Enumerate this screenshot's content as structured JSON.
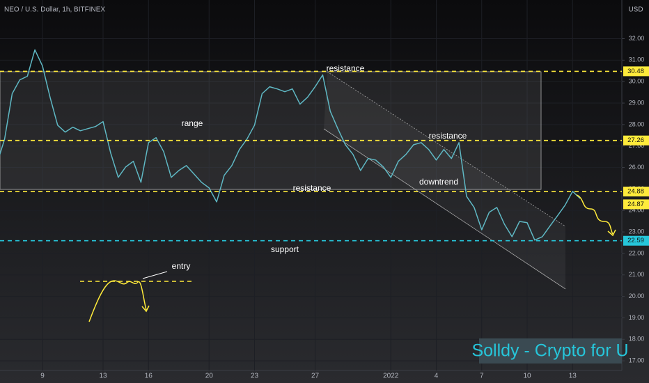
{
  "chart_data": {
    "type": "line",
    "title": "NEO / U.S. Dollar, 1h, BITFINEX",
    "y_axis_label": "USD",
    "color": "#5fb8c4",
    "categories": [
      null,
      null,
      null,
      null,
      null,
      null,
      "9",
      null,
      null,
      null,
      null,
      null,
      null,
      null,
      "13",
      null,
      null,
      null,
      null,
      null,
      "16",
      null,
      null,
      null,
      null,
      null,
      null,
      null,
      "20",
      null,
      null,
      null,
      null,
      null,
      "23",
      null,
      null,
      null,
      null,
      null,
      null,
      null,
      "27",
      null,
      null,
      null,
      null,
      null,
      null,
      null,
      null,
      null,
      "2022",
      null,
      null,
      null,
      null,
      null,
      "4",
      null,
      null,
      null,
      null,
      null,
      "7",
      null,
      null,
      null,
      null,
      null,
      "10",
      null,
      null,
      null,
      null,
      null,
      "13",
      null
    ],
    "values": [
      26.19,
      27.32,
      29.44,
      30.08,
      30.25,
      31.48,
      30.73,
      29.27,
      27.97,
      27.65,
      27.88,
      27.71,
      27.81,
      27.91,
      28.14,
      26.68,
      25.54,
      26.03,
      26.29,
      25.31,
      27.16,
      27.39,
      26.74,
      25.54,
      25.86,
      26.09,
      25.7,
      25.31,
      25.05,
      24.4,
      25.64,
      26.09,
      26.84,
      27.32,
      27.97,
      29.44,
      29.76,
      29.66,
      29.53,
      29.66,
      28.95,
      29.27,
      29.76,
      30.31,
      28.62,
      27.81,
      27.06,
      26.61,
      25.86,
      26.42,
      26.35,
      26.03,
      25.54,
      26.29,
      26.61,
      27.06,
      27.16,
      26.84,
      26.35,
      26.84,
      26.42,
      27.16,
      24.66,
      24.14,
      23.1,
      23.92,
      24.14,
      23.36,
      22.78,
      23.49,
      23.43,
      22.62,
      22.78,
      23.27,
      23.75,
      24.24,
      24.89,
      24.56
    ],
    "ylim": [
      16.55,
      33.8
    ],
    "yticks": [
      {
        "value": 17,
        "label": "17.00"
      },
      {
        "value": 18,
        "label": "18.00"
      },
      {
        "value": 19,
        "label": "19.00"
      },
      {
        "value": 20,
        "label": "20.00"
      },
      {
        "value": 21,
        "label": "21.00"
      },
      {
        "value": 22,
        "label": "22.00"
      },
      {
        "value": 23,
        "label": "23.00"
      },
      {
        "value": 24,
        "label": "24.00"
      },
      {
        "value": 25,
        "label": "25.00"
      },
      {
        "value": 26,
        "label": "26.00"
      },
      {
        "value": 27,
        "label": "27.00"
      },
      {
        "value": 28,
        "label": "28.00"
      },
      {
        "value": 29,
        "label": "29.00"
      },
      {
        "value": 30,
        "label": "30.00"
      },
      {
        "value": 31,
        "label": "31.00"
      },
      {
        "value": 32,
        "label": "32.00"
      }
    ],
    "grid": true,
    "levels": [
      {
        "value": 30.48,
        "color": "#ffeb3b"
      },
      {
        "value": 27.26,
        "color": "#ffeb3b"
      },
      {
        "value": 24.88,
        "color": "#ffeb3b"
      },
      {
        "value": 22.59,
        "color": "#26c6da"
      }
    ],
    "last_price": 24.87,
    "last_price_color": "#ffeb3b",
    "annotations": [
      "range",
      "resistance",
      "resistance",
      "resistance",
      "downtrend",
      "support",
      "entry"
    ],
    "watermark": "Solldy - Crypto for U"
  }
}
